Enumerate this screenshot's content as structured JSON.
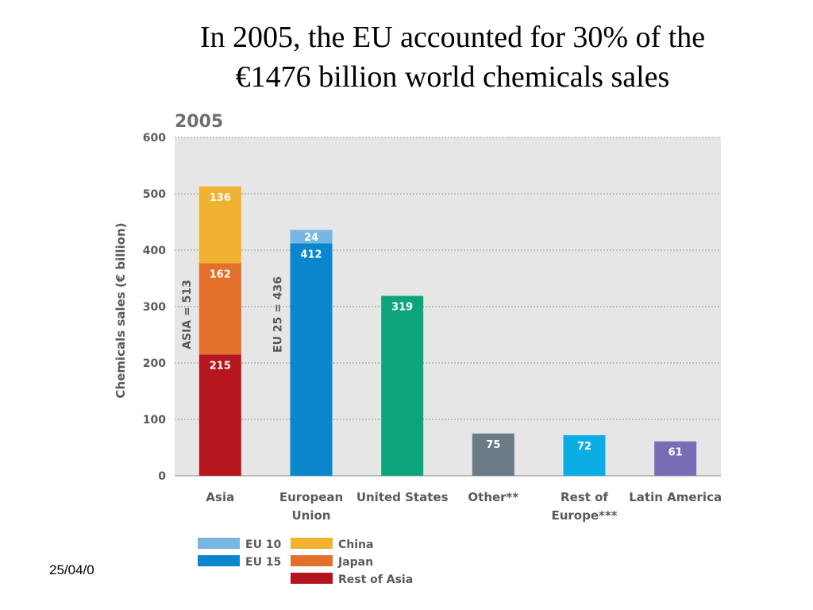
{
  "slide": {
    "title_line1": "In 2005, the EU accounted for 30% of the",
    "title_line2": "€1476 billion world chemicals sales",
    "date": "25/04/0"
  },
  "chart_data": {
    "type": "bar",
    "stacked": true,
    "year_label": "2005",
    "title": "In 2005, the EU accounted for 30% of the €1476 billion world chemicals sales",
    "ylabel": "Chemicals sales (€ billion)",
    "xlabel": "",
    "ylim": [
      0,
      600
    ],
    "yticks": [
      0,
      100,
      200,
      300,
      400,
      500,
      600
    ],
    "grid": true,
    "background": "#e6e6e6",
    "categories": [
      {
        "label_lines": [
          "Asia"
        ],
        "segments": [
          {
            "series": "Rest of Asia",
            "value": 215,
            "color": "#b5161d"
          },
          {
            "series": "Japan",
            "value": 162,
            "color": "#e2702a"
          },
          {
            "series": "China",
            "value": 136,
            "color": "#f0b230"
          }
        ]
      },
      {
        "label_lines": [
          "European",
          "Union"
        ],
        "segments": [
          {
            "series": "EU 15",
            "value": 412,
            "color": "#0a86cc"
          },
          {
            "series": "EU 10",
            "value": 24,
            "color": "#78b7e2"
          }
        ]
      },
      {
        "label_lines": [
          "United States"
        ],
        "segments": [
          {
            "series": "United States",
            "value": 319,
            "color": "#0fa57c"
          }
        ]
      },
      {
        "label_lines": [
          "Other**"
        ],
        "segments": [
          {
            "series": "Other",
            "value": 75,
            "color": "#6b7b86"
          }
        ]
      },
      {
        "label_lines": [
          "Rest of",
          "Europe***"
        ],
        "segments": [
          {
            "series": "Rest of Europe",
            "value": 72,
            "color": "#0aaee4"
          }
        ]
      },
      {
        "label_lines": [
          "Latin America"
        ],
        "segments": [
          {
            "series": "Latin America",
            "value": 61,
            "color": "#7a6cb4"
          }
        ]
      }
    ],
    "group_annotations": [
      {
        "category_index": 0,
        "text": "ASIA = 513",
        "value": 513
      },
      {
        "category_index": 1,
        "text": "EU 25 = 436",
        "value": 436
      }
    ],
    "legend": {
      "placement": "bottom-left",
      "items": [
        {
          "label": "EU 10",
          "color": "#78b7e2"
        },
        {
          "label": "EU 15",
          "color": "#0a86cc"
        },
        {
          "label": "China",
          "color": "#f0b230"
        },
        {
          "label": "Japan",
          "color": "#e2702a"
        },
        {
          "label": "Rest of Asia",
          "color": "#b5161d"
        }
      ]
    }
  }
}
